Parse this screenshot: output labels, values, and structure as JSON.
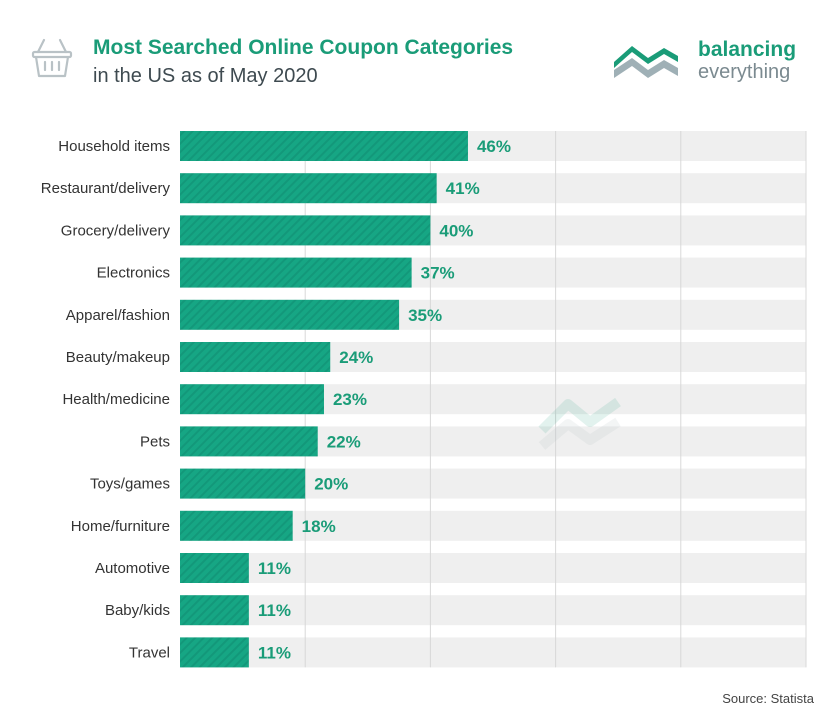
{
  "header": {
    "icon": "basket-icon",
    "title": "Most Searched Online Coupon Categories",
    "subtitle": "in the US as of May 2020"
  },
  "logo": {
    "icon": "balancing-everything-logo-icon",
    "line1": "balancing",
    "line2": "everything"
  },
  "source": "Source: Statista",
  "colors": {
    "bar": "#16a684",
    "track": "#efefef",
    "label": "#1a9c78",
    "title": "#1a9c78",
    "text": "#333333"
  },
  "chart_data": {
    "type": "bar",
    "orientation": "horizontal",
    "title": "Most Searched Online Coupon Categories",
    "subtitle": "in the US as of May 2020",
    "categories": [
      "Household items",
      "Restaurant/delivery",
      "Grocery/delivery",
      "Electronics",
      "Apparel/fashion",
      "Beauty/makeup",
      "Health/medicine",
      "Pets",
      "Toys/games",
      "Home/furniture",
      "Automotive",
      "Baby/kids",
      "Travel"
    ],
    "values": [
      46,
      41,
      40,
      37,
      35,
      24,
      23,
      22,
      20,
      18,
      11,
      11,
      11
    ],
    "value_labels": [
      "46%",
      "41%",
      "40%",
      "37%",
      "35%",
      "24%",
      "23%",
      "22%",
      "20%",
      "18%",
      "11%",
      "11%",
      "11%"
    ],
    "xlim": [
      0,
      100
    ],
    "unit": "%",
    "grid": true,
    "legend": "none"
  }
}
